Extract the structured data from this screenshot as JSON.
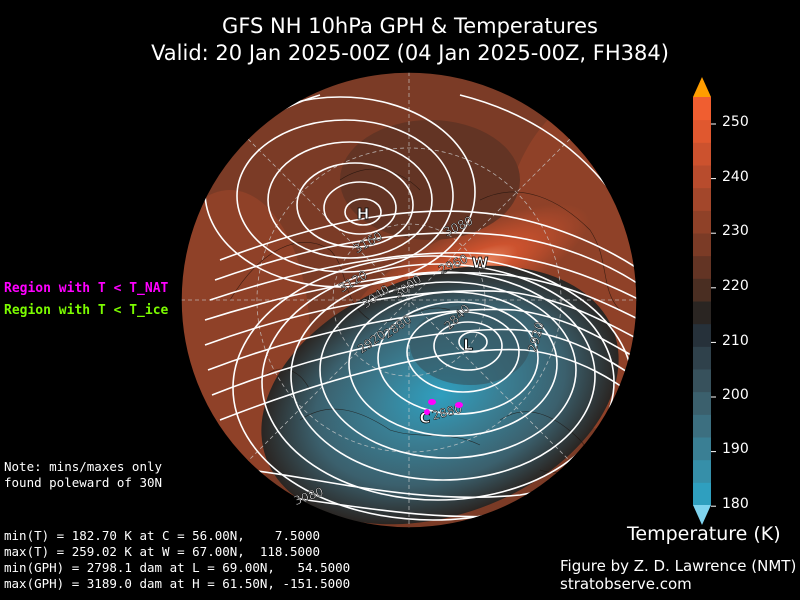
{
  "title_line1": "GFS NH 10hPa GPH & Temperatures",
  "title_line2": "Valid: 20 Jan 2025-00Z  (04 Jan 2025-00Z, FH384)",
  "legend": {
    "nat_label": "Region with T < T_NAT",
    "nat_color": "#ff00ff",
    "ice_label": "Region with T < T_ice",
    "ice_color": "#7cfc00"
  },
  "note_line1": "Note: mins/maxes only",
  "note_line2": "found poleward of 30N",
  "stats": {
    "line1": "min(T) = 182.70 K at C = 56.00N,    7.5000",
    "line2": "max(T) = 259.02 K at W = 67.00N,  118.5000",
    "line3": "min(GPH) = 2798.1 dam at L = 69.00N,   54.5000",
    "line4": "max(GPH) = 3189.0 dam at H = 61.50N, -151.5000"
  },
  "credit_line1": "Figure by Z. D. Lawrence (NMT)",
  "credit_line2": "stratobserve.com",
  "colorbar": {
    "label": "Temperature (K)",
    "ticks": [
      "250",
      "240",
      "230",
      "220",
      "210",
      "200",
      "190",
      "180"
    ],
    "colors": [
      "#2f9fbf",
      "#368fa9",
      "#3a7f94",
      "#3c6f80",
      "#3b606d",
      "#37515c",
      "#2f414b",
      "#26313a",
      "#2a2522",
      "#4a2e22",
      "#633424",
      "#7b3b26",
      "#8f4128",
      "#a3472b",
      "#b84c2d",
      "#cc522e",
      "#e0582f",
      "#f05e30"
    ],
    "over_color": "#ff9d00",
    "under_color": "#7fd3ee"
  },
  "chart_data": {
    "type": "polar stereographic map (contour)",
    "variable_fill": "Temperature (K)",
    "variable_contours": "Geopotential height (dam)",
    "level": "10hPa",
    "contour_labels": [
      "3160",
      "3080",
      "3120",
      "2960",
      "3040",
      "3000",
      "2880",
      "2840",
      "2920",
      "2920",
      "2880",
      "3080"
    ],
    "extrema_markers": {
      "H": {
        "lat": 61.5,
        "lon": -151.5,
        "gph_dam": 3189.0
      },
      "L": {
        "lat": 69.0,
        "lon": 54.5,
        "gph_dam": 2798.1
      },
      "W": {
        "lat": 67.0,
        "lon": 118.5,
        "temp_K": 259.02
      },
      "C": {
        "lat": 56.0,
        "lon": 7.5,
        "temp_K": 182.7
      }
    },
    "marker_labels": [
      "H",
      "L",
      "W",
      "C"
    ],
    "colorbar_range": [
      180,
      255
    ]
  }
}
